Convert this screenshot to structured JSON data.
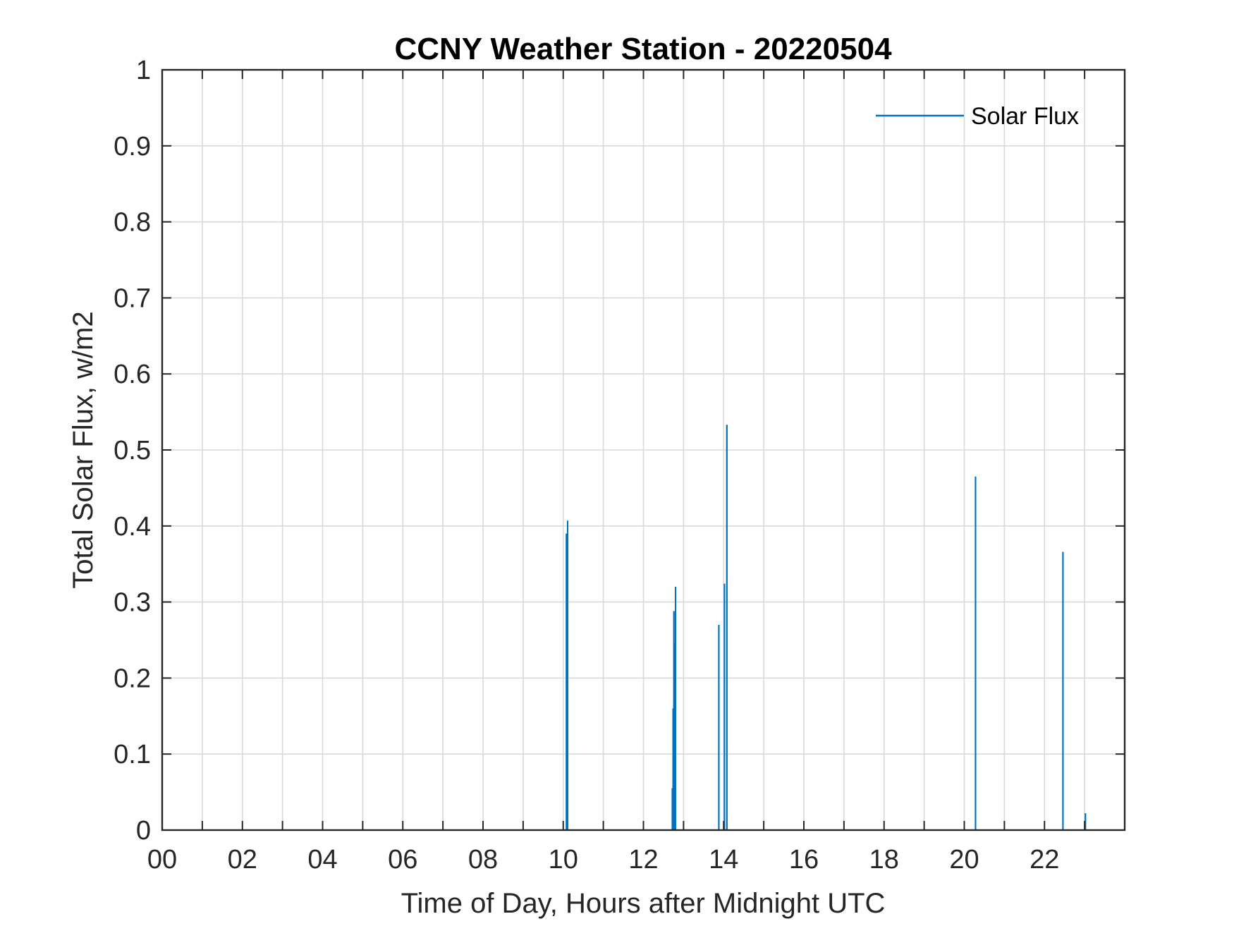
{
  "chart_data": {
    "type": "line",
    "title": "CCNY Weather Station - 20220504",
    "xlabel": "Time of Day, Hours after Midnight UTC",
    "ylabel": "Total Solar Flux, w/m2",
    "xlim": [
      0,
      24
    ],
    "ylim": [
      0,
      1
    ],
    "x_ticks": [
      0,
      2,
      4,
      6,
      8,
      10,
      12,
      14,
      16,
      18,
      20,
      22
    ],
    "x_tick_labels": [
      "00",
      "02",
      "04",
      "06",
      "08",
      "10",
      "12",
      "14",
      "16",
      "18",
      "20",
      "22"
    ],
    "y_ticks": [
      0,
      0.1,
      0.2,
      0.3,
      0.4,
      0.5,
      0.6,
      0.7,
      0.8,
      0.9,
      1
    ],
    "y_tick_labels": [
      "0",
      "0.1",
      "0.2",
      "0.3",
      "0.4",
      "0.5",
      "0.6",
      "0.7",
      "0.8",
      "0.9",
      "1"
    ],
    "grid": true,
    "minor_x_grid_step": 1,
    "legend_position": "top-right",
    "series": [
      {
        "name": "Solar Flux",
        "color": "#0072BD",
        "spikes": [
          {
            "x": 10.08,
            "y": 0.39
          },
          {
            "x": 10.11,
            "y": 0.407
          },
          {
            "x": 12.72,
            "y": 0.055
          },
          {
            "x": 12.74,
            "y": 0.16
          },
          {
            "x": 12.76,
            "y": 0.288
          },
          {
            "x": 12.78,
            "y": 0.245
          },
          {
            "x": 12.8,
            "y": 0.32
          },
          {
            "x": 13.88,
            "y": 0.27
          },
          {
            "x": 14.02,
            "y": 0.324
          },
          {
            "x": 14.08,
            "y": 0.533
          },
          {
            "x": 20.28,
            "y": 0.465
          },
          {
            "x": 22.46,
            "y": 0.366
          },
          {
            "x": 23.02,
            "y": 0.022
          }
        ]
      }
    ]
  }
}
